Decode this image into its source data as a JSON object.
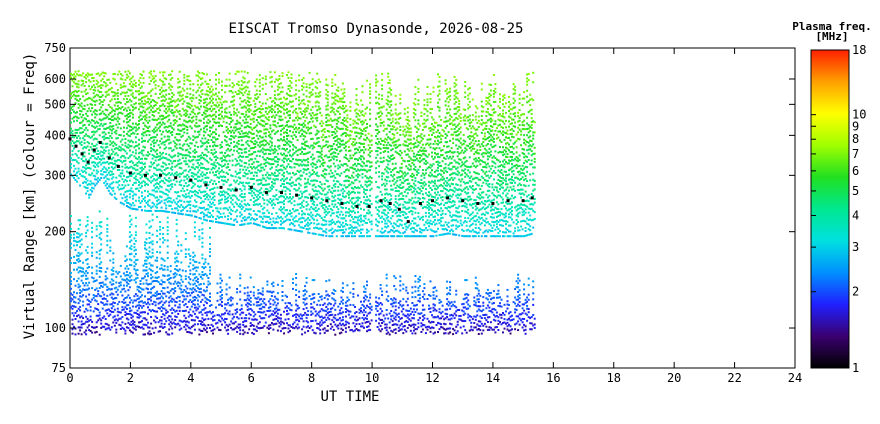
{
  "chart_data": {
    "type": "scatter",
    "title": "EISCAT Tromso Dynasonde, 2026-08-25",
    "xlabel": "UT TIME",
    "ylabel": "Virtual Range [km] (colour = Freq)",
    "xlim": [
      0,
      24
    ],
    "ylim": [
      75,
      750
    ],
    "y_scale": "log",
    "x_ticks": [
      "0",
      "2",
      "4",
      "6",
      "8",
      "10",
      "12",
      "14",
      "16",
      "18",
      "20",
      "22",
      "24"
    ],
    "y_ticks": [
      {
        "value": 75,
        "label": "75"
      },
      {
        "value": 100,
        "label": "100"
      },
      {
        "value": 200,
        "label": "200"
      },
      {
        "value": 300,
        "label": "300"
      },
      {
        "value": 400,
        "label": "400"
      },
      {
        "value": 500,
        "label": "500"
      },
      {
        "value": 600,
        "label": "600"
      },
      {
        "value": 750,
        "label": "750"
      }
    ],
    "colorbar": {
      "title": "Plasma freq.",
      "units": "[MHz]",
      "scale": "log",
      "range": [
        1,
        18
      ],
      "ticks": [
        1,
        2,
        3,
        4,
        5,
        6,
        7,
        8,
        9,
        10,
        18
      ],
      "colors": [
        "#000000",
        "#3a0070",
        "#2020ff",
        "#0090ff",
        "#00e0e0",
        "#00e890",
        "#20e020",
        "#a0ff00",
        "#ffff00",
        "#ffa000",
        "#ff2000"
      ]
    },
    "data_coverage_ut": [
      0,
      15.4
    ],
    "gap_ut": [
      10.0,
      10.1
    ],
    "series": [
      {
        "name": "",
        "x": [
          0.0,
          0.2,
          0.4,
          0.6,
          0.8,
          1.0,
          1.3,
          1.6,
          2.0,
          2.5,
          3.0,
          3.5,
          4.0,
          4.5,
          5.0,
          5.5,
          6.0,
          6.5,
          7.0,
          7.5,
          8.0,
          8.5,
          9.0,
          9.5,
          9.9,
          10.3,
          10.6,
          10.9,
          11.2,
          11.6,
          12.0,
          12.5,
          13.0,
          13.5,
          14.0,
          14.5,
          15.0,
          15.3
        ],
        "y": [
          390,
          370,
          350,
          330,
          360,
          380,
          340,
          320,
          305,
          300,
          300,
          295,
          290,
          280,
          275,
          270,
          275,
          265,
          265,
          260,
          255,
          250,
          245,
          240,
          240,
          250,
          245,
          235,
          215,
          245,
          250,
          255,
          250,
          245,
          245,
          250,
          250,
          255
        ]
      }
    ]
  }
}
